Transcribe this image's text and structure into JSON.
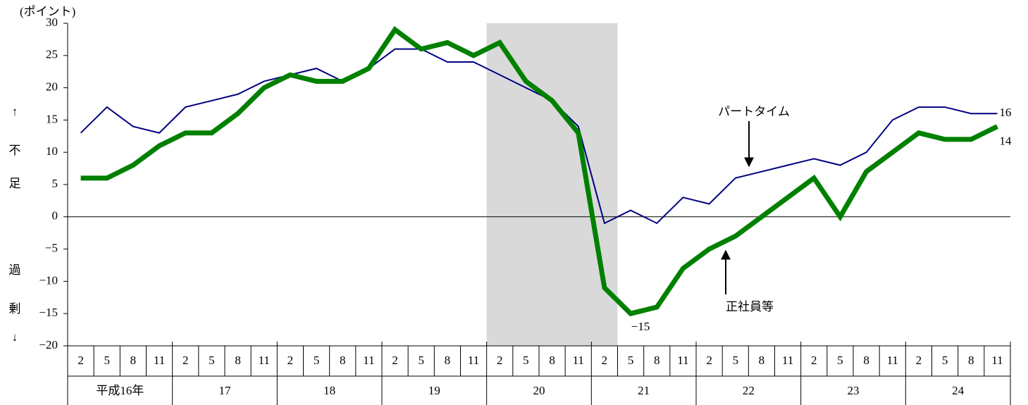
{
  "chart_data": {
    "type": "line",
    "ylabel": "(ポイント)",
    "ylabel_upper": [
      "↑",
      "不",
      "足"
    ],
    "ylabel_lower": [
      "過",
      "剰",
      "↓"
    ],
    "categories": [
      "2",
      "5",
      "8",
      "11",
      "2",
      "5",
      "8",
      "11",
      "2",
      "5",
      "8",
      "11",
      "2",
      "5",
      "8",
      "11",
      "2",
      "5",
      "8",
      "11",
      "2",
      "5",
      "8",
      "11",
      "2",
      "5",
      "8",
      "11",
      "2",
      "5",
      "8",
      "11",
      "2",
      "5",
      "8",
      "11"
    ],
    "groups": [
      "平成16年",
      "17",
      "18",
      "19",
      "20",
      "21",
      "22",
      "23",
      "24"
    ],
    "shaded_range": [
      16,
      20
    ],
    "series": [
      {
        "name": "パートタイム",
        "color": "#000080",
        "width": 2,
        "values": [
          13,
          17,
          14,
          13,
          17,
          18,
          19,
          21,
          22,
          23,
          21,
          23,
          26,
          26,
          24,
          24,
          22,
          20,
          18,
          14,
          -1,
          1,
          -1,
          3,
          2,
          6,
          7,
          8,
          9,
          8,
          10,
          15,
          17,
          17,
          16,
          16
        ],
        "value_labels": [
          null,
          null,
          null,
          null,
          null,
          null,
          null,
          null,
          null,
          null,
          null,
          null,
          null,
          null,
          null,
          null,
          null,
          null,
          null,
          null,
          null,
          null,
          null,
          null,
          null,
          null,
          null,
          null,
          null,
          null,
          null,
          null,
          null,
          null,
          null,
          "16"
        ]
      },
      {
        "name": "正社員等",
        "color": "#008000",
        "width": 7,
        "values": [
          6,
          6,
          8,
          11,
          13,
          13,
          16,
          20,
          22,
          21,
          21,
          23,
          29,
          26,
          27,
          25,
          27,
          21,
          18,
          13,
          -11,
          -15,
          -14,
          -8,
          -5,
          -3,
          0,
          3,
          6,
          0,
          7,
          10,
          13,
          12,
          12,
          14
        ],
        "value_labels": [
          null,
          null,
          null,
          null,
          null,
          null,
          null,
          null,
          null,
          null,
          null,
          null,
          null,
          null,
          null,
          null,
          null,
          null,
          null,
          null,
          null,
          "−15",
          null,
          null,
          null,
          null,
          null,
          null,
          null,
          null,
          null,
          null,
          null,
          null,
          null,
          "14"
        ]
      }
    ],
    "ylim": [
      -20,
      30
    ],
    "yticks": [
      {
        "value": -20,
        "label": "−20"
      },
      {
        "value": -15,
        "label": "−15"
      },
      {
        "value": -10,
        "label": "−10"
      },
      {
        "value": -5,
        "label": "−5"
      },
      0,
      5,
      10,
      15,
      20,
      25,
      30
    ]
  }
}
